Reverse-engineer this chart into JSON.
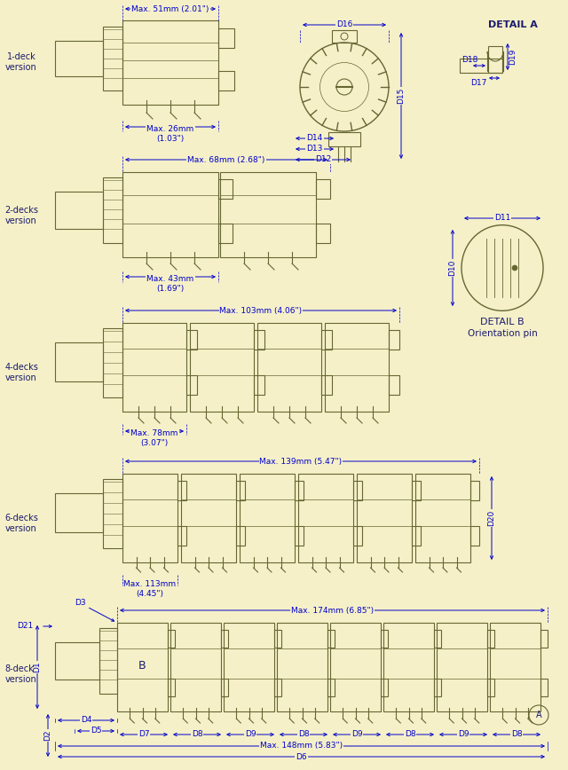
{
  "bg_color": "#f5f0c8",
  "line_color": "#1a1a6e",
  "dim_color": "#0000cc",
  "draw_color": "#666633",
  "dim_labels": {
    "1deck_w": "Max. 51mm (2.01\")",
    "1deck_h": "Max. 26mm\n(1.03\")",
    "2decks_w": "Max. 68mm (2.68\")",
    "2decks_h": "Max. 43mm\n(1.69\")",
    "4decks_w": "Max. 103mm (4.06\")",
    "4decks_h": "Max. 78mm\n(3.07\")",
    "6decks_w": "Max. 139mm (5.47\")",
    "6decks_h": "Max. 113mm\n(4.45\")",
    "8decks_w1": "Max. 174mm (6.85\")",
    "8decks_w2": "Max. 148mm (5.83\")"
  }
}
